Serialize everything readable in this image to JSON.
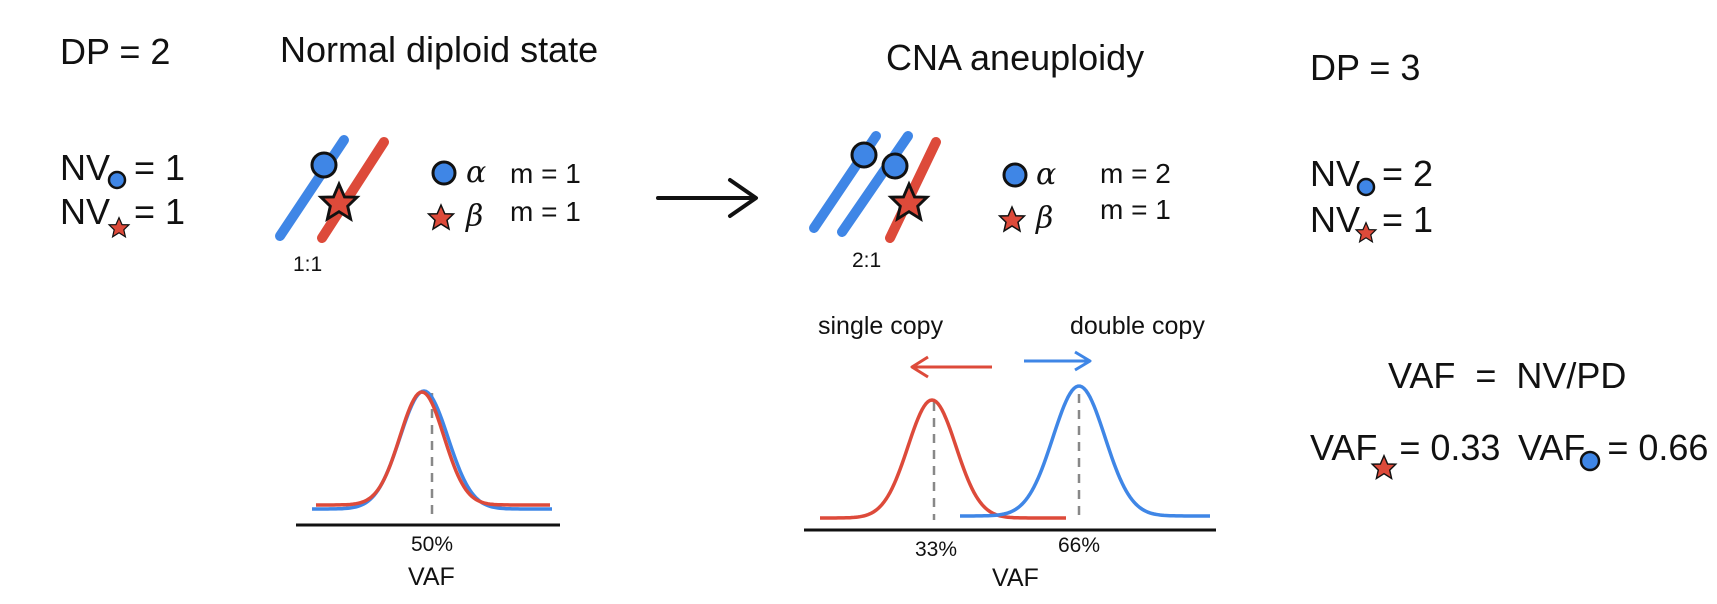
{
  "colors": {
    "blue": "#3f86e6",
    "red": "#dd4a3a",
    "black": "#111111",
    "grey": "#888888"
  },
  "left_panel": {
    "dp": "DP = 2",
    "nv_circle": {
      "prefix": "NV",
      "suffix": "= 1"
    },
    "nv_star": {
      "prefix": "NV",
      "suffix": "= 1"
    }
  },
  "normal_state": {
    "title": "Normal diploid state",
    "ratio": "1:1",
    "legend_alpha": "α",
    "legend_beta": "β",
    "m_alpha": "m = 1",
    "m_beta": "m = 1"
  },
  "aneuploidy_state": {
    "title": "CNA aneuploidy",
    "ratio": "2:1",
    "legend_alpha": "α",
    "legend_beta": "β",
    "m_alpha": "m = 2",
    "m_beta": "m = 1",
    "single_copy_label": "single copy",
    "double_copy_label": "double copy"
  },
  "right_panel": {
    "dp": "DP = 3",
    "nv_circle": {
      "prefix": "NV",
      "suffix": "= 2"
    },
    "nv_star": {
      "prefix": "NV",
      "suffix": "= 1"
    },
    "formula": "VAF  =  NV/PD",
    "vaf_star": {
      "prefix": "VAF",
      "value": "= 0.33"
    },
    "vaf_circle": {
      "prefix": "VAF",
      "value": "= 0.66"
    }
  },
  "chart_data": [
    {
      "type": "line",
      "title": "",
      "xlabel": "VAF",
      "ylabel": "",
      "x_tick_labels": [
        "50%"
      ],
      "series": [
        {
          "name": "alpha (blue)",
          "peak_vaf": 0.5
        },
        {
          "name": "beta (red)",
          "peak_vaf": 0.5
        }
      ]
    },
    {
      "type": "line",
      "title": "",
      "xlabel": "VAF",
      "ylabel": "",
      "x_tick_labels": [
        "33%",
        "66%"
      ],
      "series": [
        {
          "name": "beta single copy (red)",
          "peak_vaf": 0.33
        },
        {
          "name": "alpha double copy (blue)",
          "peak_vaf": 0.66
        }
      ]
    }
  ]
}
